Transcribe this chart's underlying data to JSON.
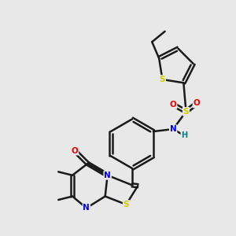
{
  "bg_color": "#e8e8e8",
  "bond_color": "#1a1a1a",
  "bond_width": 1.8,
  "dbo": 0.07,
  "colors": {
    "S": "#cccc00",
    "N": "#0000ee",
    "O": "#ee0000",
    "H": "#008080"
  },
  "figsize": [
    3.0,
    3.0
  ],
  "dpi": 100,
  "xlim": [
    0,
    10
  ],
  "ylim": [
    0,
    10
  ]
}
